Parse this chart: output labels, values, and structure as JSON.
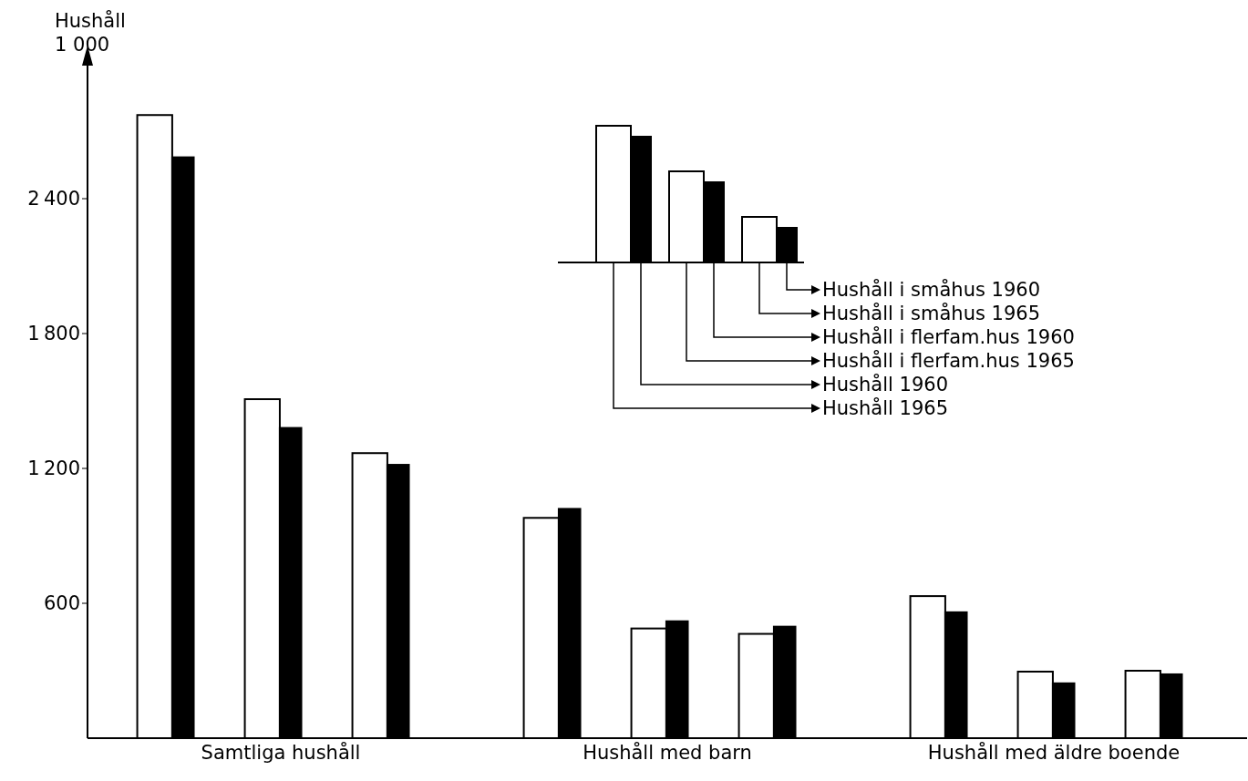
{
  "chart_data": {
    "type": "bar",
    "ylabel": "Hushåll\n1 000",
    "categories": [
      "Samtliga hushåll",
      "Hushåll med barn",
      "Hushåll med äldre boende"
    ],
    "series": [
      {
        "name": "Hushåll 1965",
        "color": "#ffffff",
        "values": [
          2772,
          980,
          632
        ]
      },
      {
        "name": "Hushåll 1960",
        "color": "#000000",
        "values": [
          2584,
          1020,
          560
        ]
      },
      {
        "name": "Hushåll i flerfam.hus 1965",
        "color": "#ffffff",
        "values": [
          1508,
          488,
          296
        ]
      },
      {
        "name": "Hushåll i flerfam.hus 1960",
        "color": "#000000",
        "values": [
          1380,
          520,
          244
        ]
      },
      {
        "name": "Hushåll i småhus 1965",
        "color": "#ffffff",
        "values": [
          1268,
          464,
          300
        ]
      },
      {
        "name": "Hushåll i småhus 1960",
        "color": "#000000",
        "values": [
          1216,
          496,
          284
        ]
      }
    ],
    "ylim": [
      0,
      3000
    ],
    "yticks": [
      600,
      1200,
      1800,
      2400
    ],
    "grid": false,
    "legend": "top right"
  }
}
